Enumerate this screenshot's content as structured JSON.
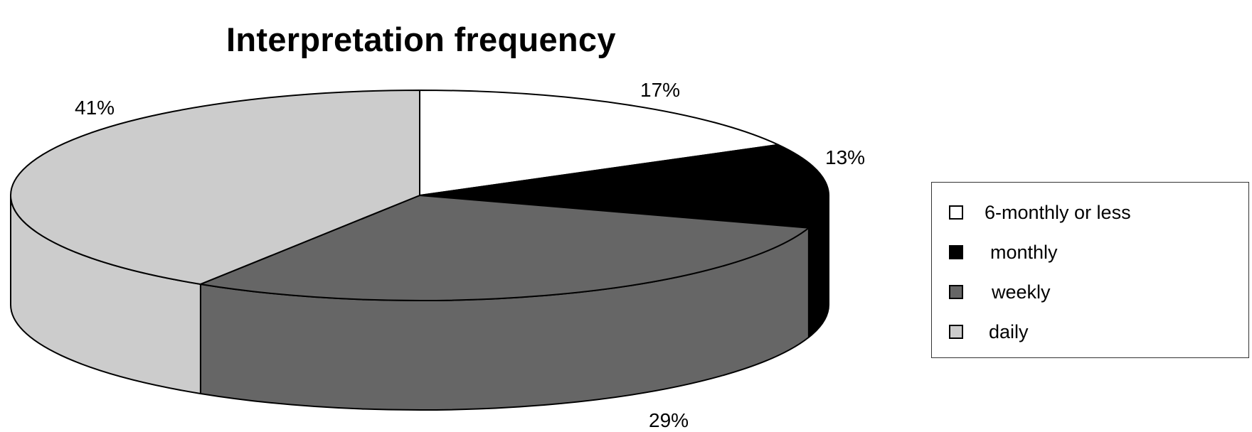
{
  "chart_data": {
    "type": "pie",
    "title": "Interpretation frequency",
    "three_d": true,
    "legend_position": "right",
    "slices": [
      {
        "label": "6-monthly or less",
        "value": 17,
        "display": "17%",
        "color": "#ffffff"
      },
      {
        "label": "monthly",
        "value": 13,
        "display": "13%",
        "color": "#000000"
      },
      {
        "label": "weekly",
        "value": 29,
        "display": "29%",
        "color": "#666666"
      },
      {
        "label": "daily",
        "value": 41,
        "display": "41%",
        "color": "#cccccc"
      }
    ]
  }
}
